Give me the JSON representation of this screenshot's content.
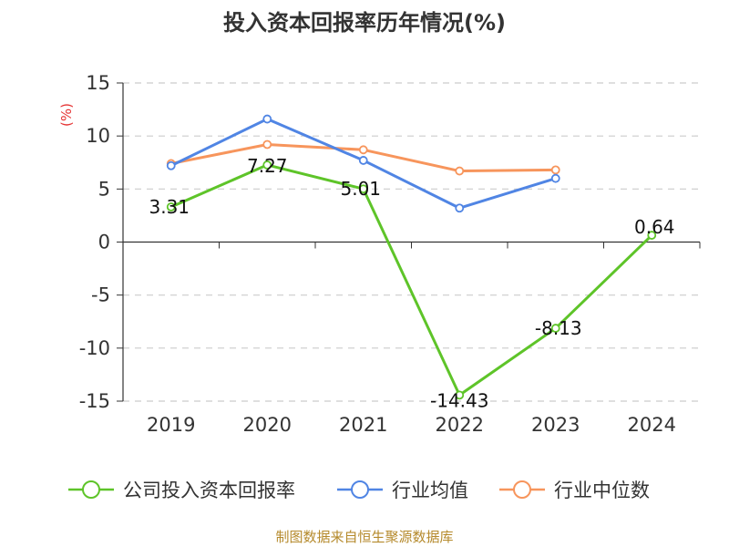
{
  "chart_data": {
    "type": "line",
    "title": "投入资本回报率历年情况(%)",
    "ylabel": "(%)",
    "categories": [
      "2019",
      "2020",
      "2021",
      "2022",
      "2023",
      "2024"
    ],
    "ylim": [
      -15,
      15
    ],
    "yticks": [
      -15,
      -10,
      -5,
      0,
      5,
      10,
      15
    ],
    "grid": true,
    "legend_position": "bottom",
    "series": [
      {
        "name": "公司投入资本回报率",
        "values": [
          3.31,
          7.27,
          5.01,
          -14.43,
          -8.13,
          0.64
        ],
        "color": "#5ec429",
        "labels": [
          "3.31",
          "7.27",
          "5.01",
          "-14.43",
          "-8.13",
          "0.64"
        ]
      },
      {
        "name": "行业均值",
        "values": [
          7.2,
          11.6,
          7.7,
          3.2,
          6.0,
          null
        ],
        "color": "#5085e4"
      },
      {
        "name": "行业中位数",
        "values": [
          7.4,
          9.2,
          8.7,
          6.7,
          6.8,
          null
        ],
        "color": "#f7955c"
      }
    ],
    "source": "制图数据来自恒生聚源数据库",
    "colors": {
      "unit": "#e53333",
      "source": "#b58a2c",
      "grid": "#cccccc",
      "axis": "#333333"
    }
  }
}
